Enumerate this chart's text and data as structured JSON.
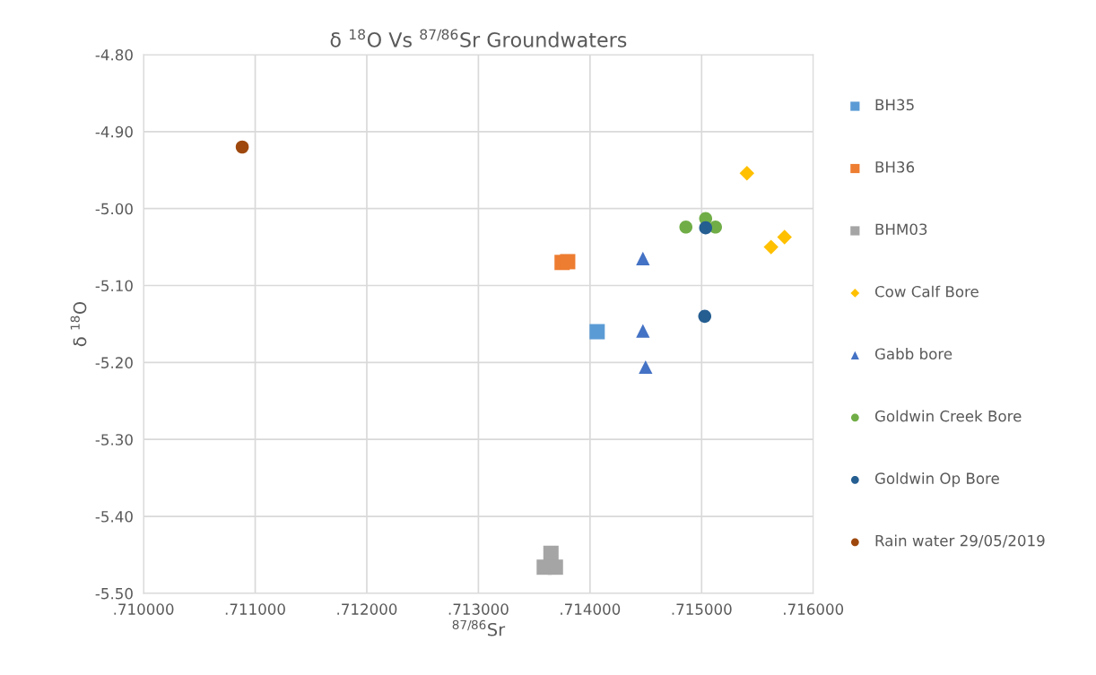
{
  "chart_data": {
    "type": "scatter",
    "title": "δ $^{18}$O Vs $^{87/86}$Sr Groundwaters",
    "xlabel": "$^{87/86}$Sr",
    "ylabel": "δ $^{18}$O",
    "series": [
      {
        "name": "BH35",
        "color": "#5b9bd5",
        "marker": "square",
        "x": [
          0.714064
        ],
        "values": [
          -5.16
        ]
      },
      {
        "name": "BH36",
        "color": "#ed7d31",
        "marker": "square",
        "x": [
          0.71375,
          0.7138
        ],
        "values": [
          -5.07,
          -5.069
        ]
      },
      {
        "name": "BHM03",
        "color": "#a5a5a5",
        "marker": "square",
        "x": [
          0.71365,
          0.71359,
          0.71369
        ],
        "values": [
          -5.448,
          -5.466,
          -5.466
        ]
      },
      {
        "name": "Cow Calf Bore",
        "color": "#ffc000",
        "marker": "diamond",
        "x": [
          0.715406,
          0.715622,
          0.715743
        ],
        "values": [
          -4.954,
          -5.05,
          -5.037
        ]
      },
      {
        "name": "Gabb bore",
        "color": "#4472c4",
        "marker": "triangle",
        "x": [
          0.714474,
          0.714474,
          0.714498
        ],
        "values": [
          -5.065,
          -5.159,
          -5.206
        ]
      },
      {
        "name": "Goldwin Creek Bore",
        "color": "#70ad47",
        "marker": "circle",
        "x": [
          0.714859,
          0.715036,
          0.715124
        ],
        "values": [
          -5.024,
          -5.013,
          -5.024
        ]
      },
      {
        "name": "Goldwin Op Bore",
        "color": "#255e91",
        "marker": "circle",
        "x": [
          0.715036,
          0.715028
        ],
        "values": [
          -5.025,
          -5.14
        ]
      },
      {
        "name": "Rain water 29/05/2019",
        "color": "#9e480e",
        "marker": "circle",
        "x": [
          0.710884
        ],
        "values": [
          -4.92
        ]
      }
    ],
    "xlim": [
      0.71,
      0.716
    ],
    "xticks": [
      {
        "value": 0.71,
        "label": ".710000"
      },
      {
        "value": 0.711,
        "label": ".711000"
      },
      {
        "value": 0.712,
        "label": ".712000"
      },
      {
        "value": 0.713,
        "label": ".713000"
      },
      {
        "value": 0.714,
        "label": ".714000"
      },
      {
        "value": 0.715,
        "label": ".715000"
      },
      {
        "value": 0.716,
        "label": ".716000"
      }
    ],
    "ylim": [
      -5.5,
      -4.8
    ],
    "yticks": [
      {
        "value": -5.5,
        "label": "-5.50"
      },
      {
        "value": -5.4,
        "label": "-5.40"
      },
      {
        "value": -5.3,
        "label": "-5.30"
      },
      {
        "value": -5.2,
        "label": "-5.20"
      },
      {
        "value": -5.1,
        "label": "-5.10"
      },
      {
        "value": -5.0,
        "label": "-5.00"
      },
      {
        "value": -4.9,
        "label": "-4.90"
      },
      {
        "value": -4.8,
        "label": "-4.80"
      }
    ],
    "grid": true,
    "legend": "right"
  }
}
